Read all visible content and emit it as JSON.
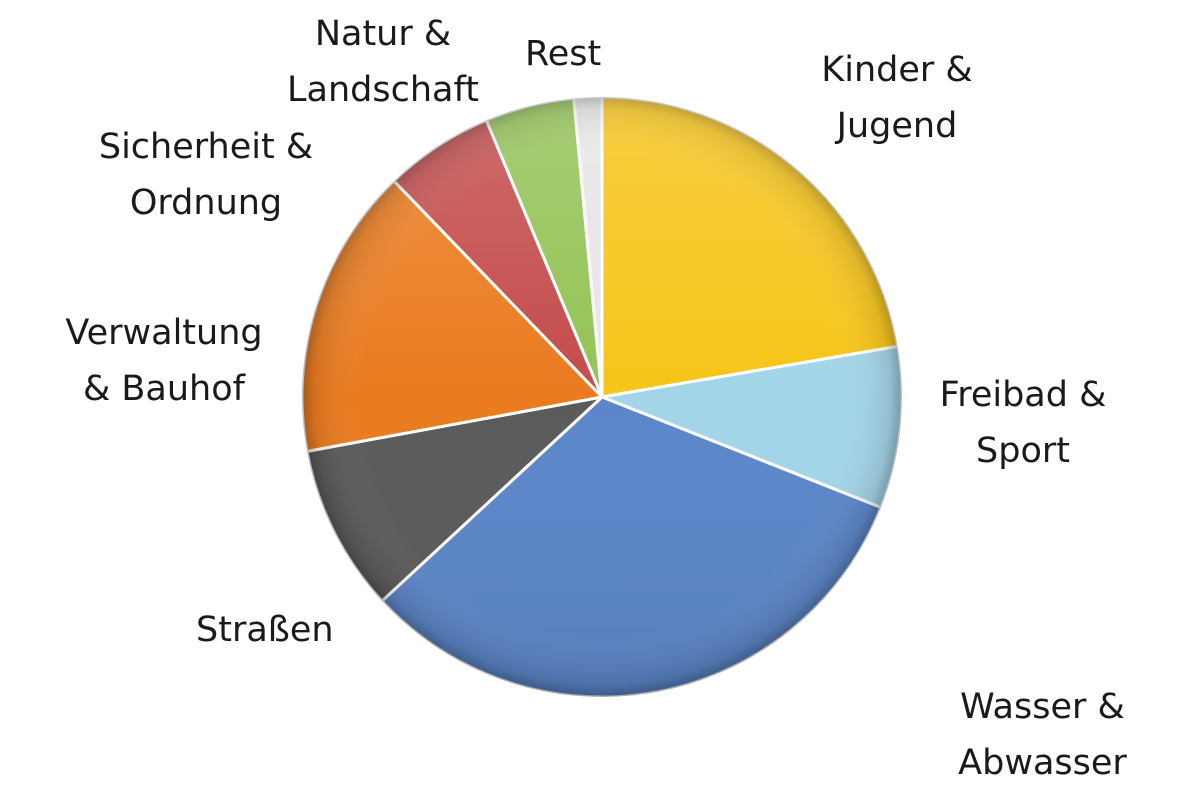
{
  "chart_data": {
    "type": "pie",
    "slices": [
      {
        "label": [
          "Kinder &",
          "Jugend"
        ],
        "value": 22.3,
        "color": "#f7c417"
      },
      {
        "label": [
          "Freibad &",
          "Sport"
        ],
        "value": 8.7,
        "color": "#a3d4e8"
      },
      {
        "label": [
          "Wasser &",
          "Abwasser"
        ],
        "value": 32.1,
        "color": "#5b86c9"
      },
      {
        "label": [
          "Straßen"
        ],
        "value": 9.0,
        "color": "#5a5a5a"
      },
      {
        "label": [
          "Verwaltung",
          "& Bauhof"
        ],
        "value": 15.7,
        "color": "#ea7b1f"
      },
      {
        "label": [
          "Sicherheit &",
          "Ordnung"
        ],
        "value": 5.9,
        "color": "#c44b4b"
      },
      {
        "label": [
          "Natur &",
          "Landschaft"
        ],
        "value": 4.8,
        "color": "#93c355"
      },
      {
        "label": [
          "Rest"
        ],
        "value": 1.5,
        "color": "#e6e6e6"
      }
    ],
    "start": "top",
    "direction": "clockwise",
    "legend": "none"
  }
}
